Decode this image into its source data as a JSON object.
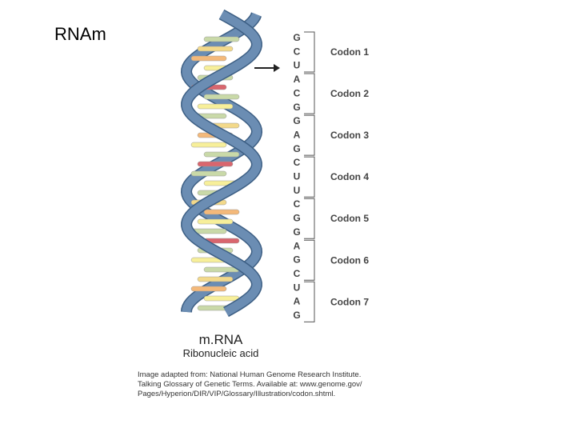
{
  "title": "RNAm",
  "sequence": [
    "G",
    "C",
    "U",
    "A",
    "C",
    "G",
    "G",
    "A",
    "G",
    "C",
    "U",
    "U",
    "C",
    "G",
    "G",
    "A",
    "G",
    "C",
    "U",
    "A",
    "G"
  ],
  "codons": [
    "Codon 1",
    "Codon 2",
    "Codon 3",
    "Codon 4",
    "Codon 5",
    "Codon 6",
    "Codon 7"
  ],
  "caption": {
    "name": "m.RNA",
    "full_name": "Ribonucleic acid"
  },
  "credit": [
    "Image adapted from: National Human Genome Research Institute.",
    "Talking Glossary of Genetic Terms. Available at: www.genome.gov/",
    "Pages/Hyperion/DIR/VIP/Glossary/Illustration/codon.shtml."
  ]
}
